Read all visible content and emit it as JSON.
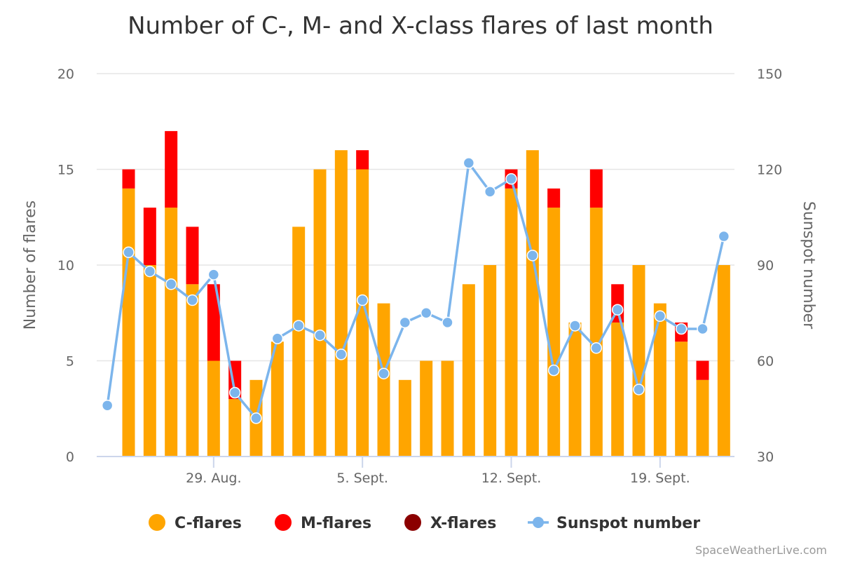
{
  "chart_data": {
    "type": "bar",
    "title": "Number of C-, M- and X-class flares of last month",
    "ylabel": "Number of flares",
    "y2label": "Sunspot number",
    "ylim": [
      0,
      20
    ],
    "y2lim": [
      30,
      150
    ],
    "yticks": [
      0,
      5,
      10,
      15,
      20
    ],
    "y2ticks": [
      30,
      60,
      90,
      120,
      150
    ],
    "xtick_labels": [
      {
        "label": "29. Aug.",
        "index": 5
      },
      {
        "label": "5. Sept.",
        "index": 12
      },
      {
        "label": "12. Sept.",
        "index": 19
      },
      {
        "label": "19. Sept.",
        "index": 26
      }
    ],
    "n_days": 30,
    "stacked": true,
    "series": [
      {
        "name": "C-flares",
        "type": "bar",
        "color": "#ffa500",
        "values": [
          0,
          14,
          10,
          13,
          9,
          5,
          3,
          4,
          6,
          12,
          15,
          16,
          15,
          8,
          4,
          5,
          5,
          9,
          10,
          14,
          16,
          13,
          7,
          13,
          7,
          10,
          8,
          6,
          4,
          10
        ]
      },
      {
        "name": "M-flares",
        "type": "bar",
        "color": "#ff0000",
        "values": [
          0,
          1,
          3,
          4,
          3,
          4,
          2,
          0,
          0,
          0,
          0,
          0,
          1,
          0,
          0,
          0,
          0,
          0,
          0,
          1,
          0,
          1,
          0,
          2,
          2,
          0,
          0,
          1,
          1,
          0
        ]
      },
      {
        "name": "X-flares",
        "type": "bar",
        "color": "#8b0000",
        "values": [
          0,
          0,
          0,
          0,
          0,
          0,
          0,
          0,
          0,
          0,
          0,
          0,
          0,
          0,
          0,
          0,
          0,
          0,
          0,
          0,
          0,
          0,
          0,
          0,
          0,
          0,
          0,
          0,
          0,
          0
        ]
      },
      {
        "name": "Sunspot number",
        "type": "line",
        "axis": "right",
        "color": "#7cb5ec",
        "values": [
          46,
          94,
          88,
          84,
          79,
          87,
          50,
          42,
          67,
          71,
          68,
          62,
          79,
          56,
          72,
          75,
          72,
          122,
          113,
          117,
          93,
          57,
          71,
          64,
          76,
          51,
          74,
          70,
          70,
          99
        ]
      }
    ],
    "legend": "bottom-center",
    "grid": true
  },
  "credit": "SpaceWeatherLive.com"
}
